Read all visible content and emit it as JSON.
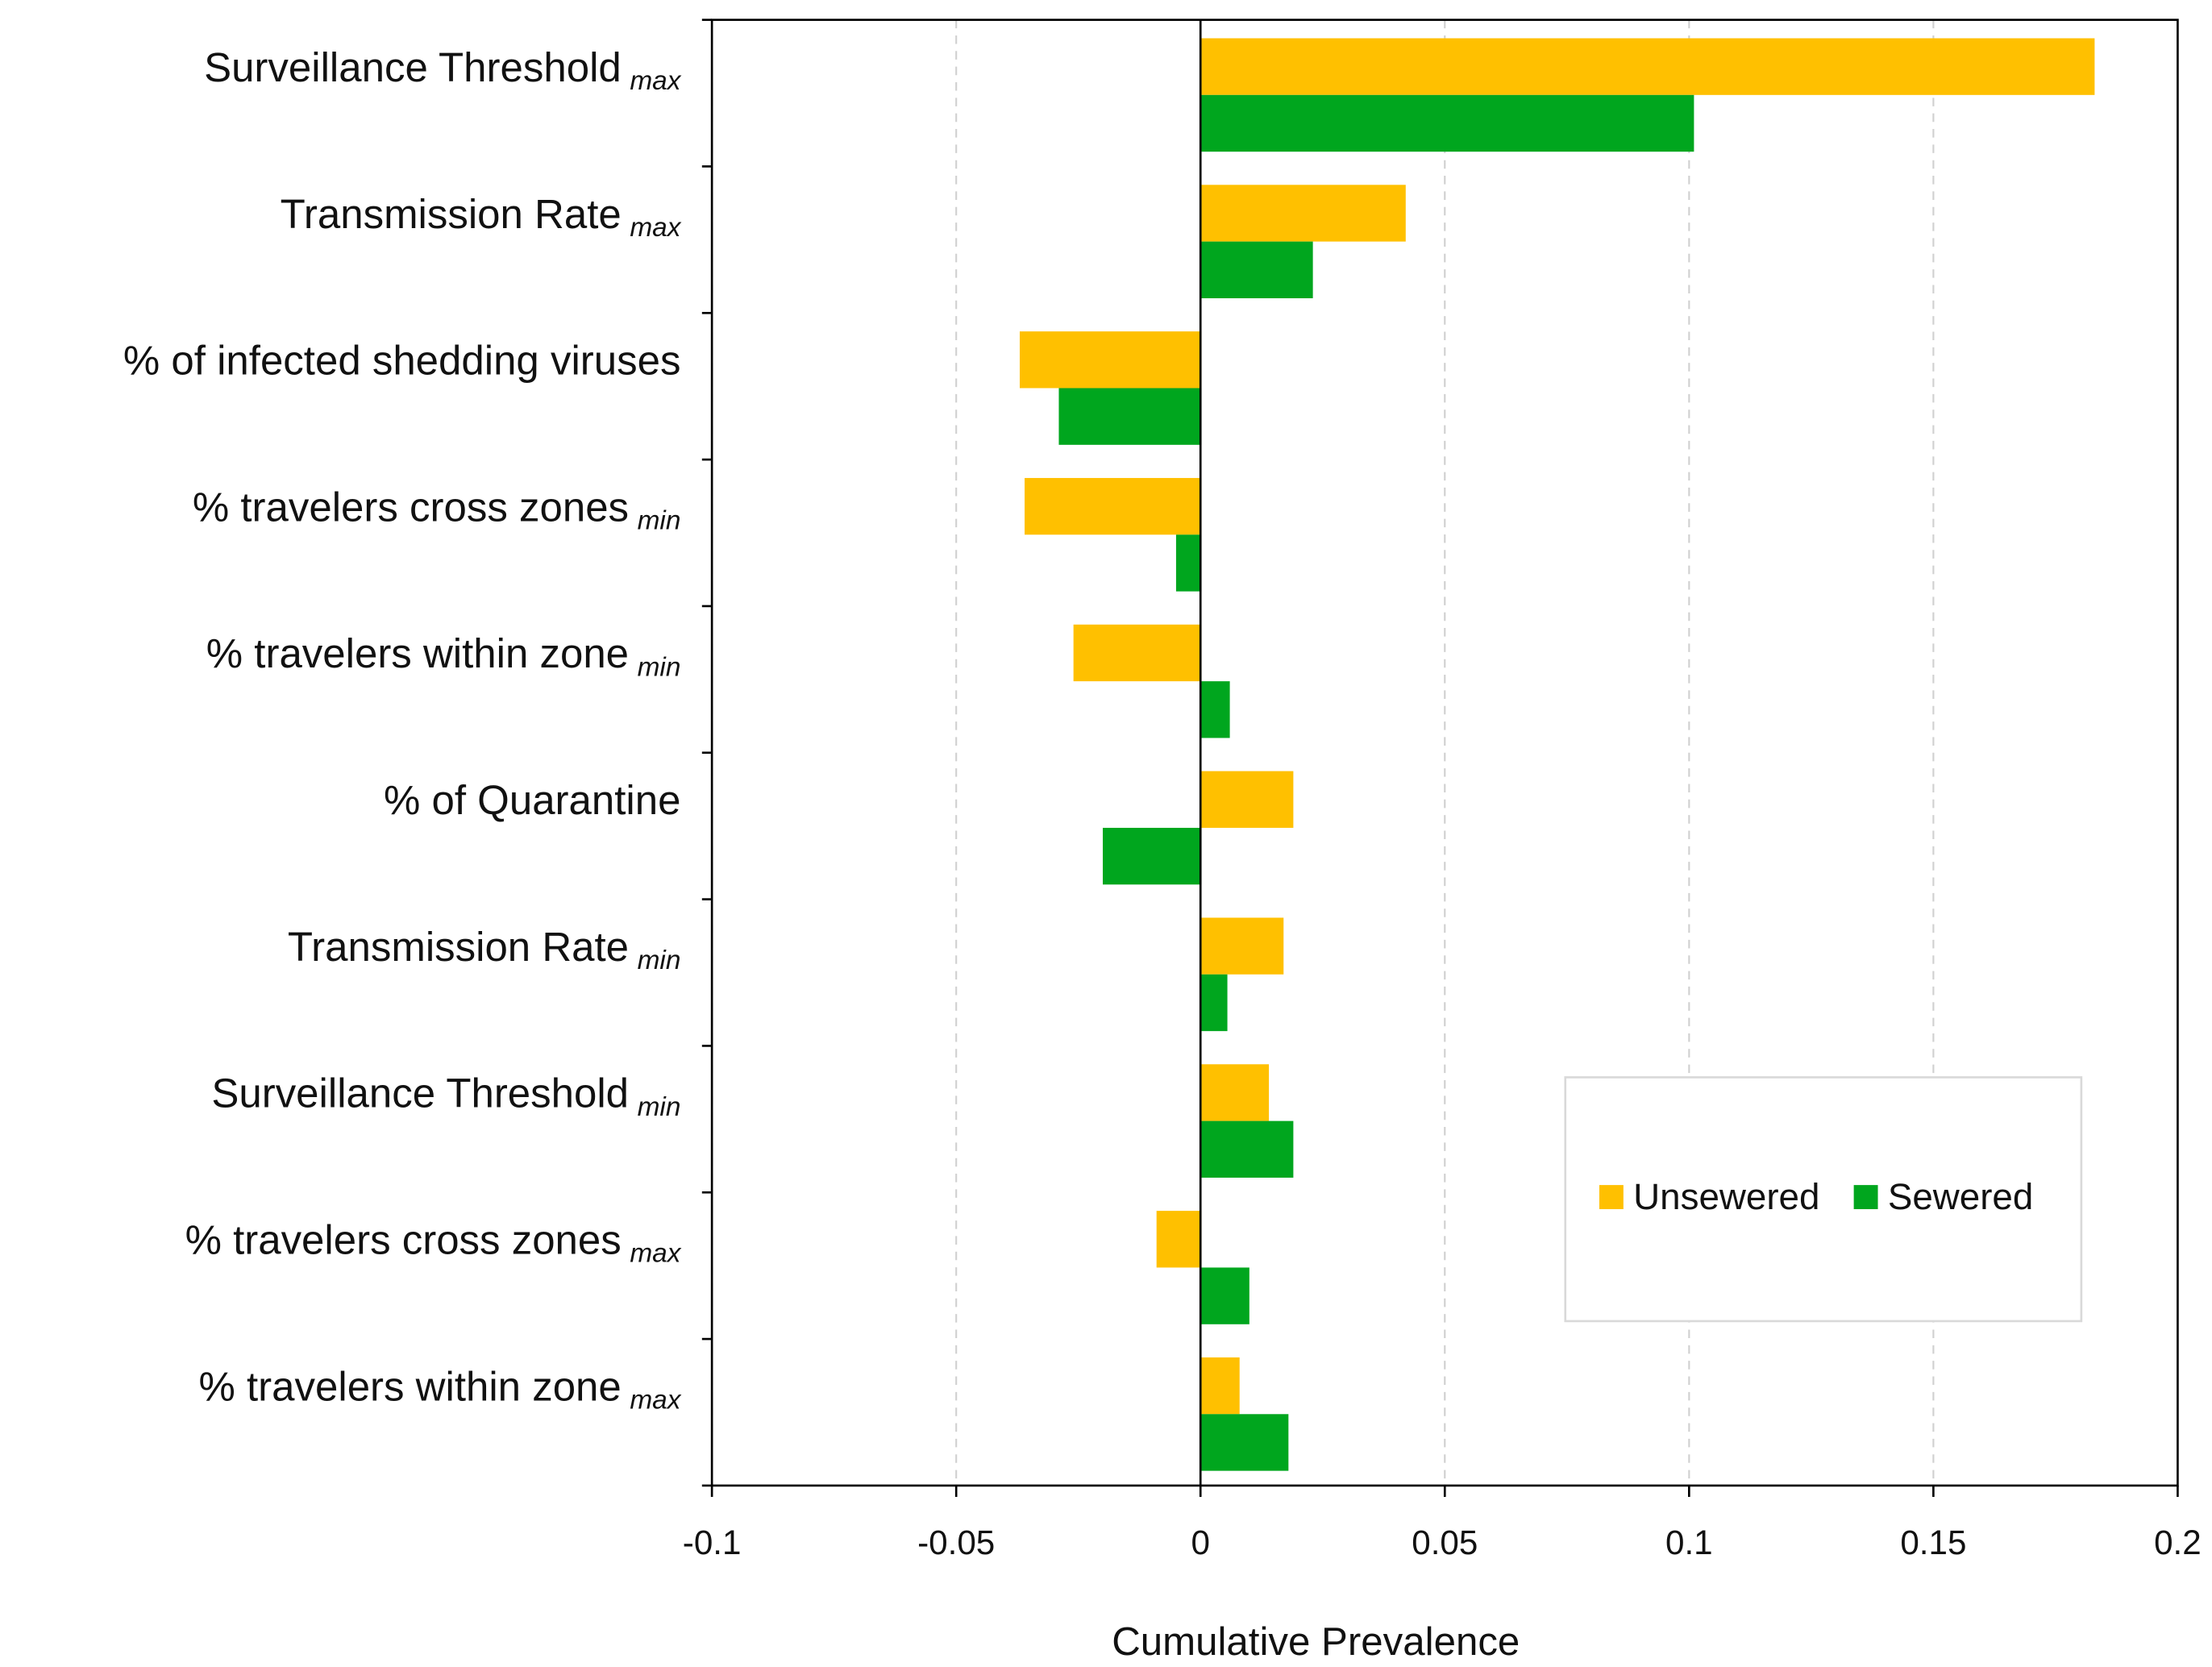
{
  "chart_data": {
    "type": "bar",
    "orientation": "horizontal",
    "xlabel": "Cumulative Prevalence",
    "categories": [
      {
        "label": "Surveillance Threshold",
        "subscript": "max"
      },
      {
        "label": "Transmission Rate",
        "subscript": "max"
      },
      {
        "label": "% of infected shedding viruses"
      },
      {
        "label": "% travelers cross zones",
        "subscript": "min"
      },
      {
        "label": "% travelers within zone",
        "subscript": "min"
      },
      {
        "label": "% of Quarantine"
      },
      {
        "label": "Transmission Rate",
        "subscript": "min"
      },
      {
        "label": "Surveillance Threshold",
        "subscript": "min"
      },
      {
        "label": "% travelers cross zones",
        "subscript": "max"
      },
      {
        "label": "% travelers within zone",
        "subscript": "max"
      }
    ],
    "series": [
      {
        "name": "Unsewered",
        "color": "#ffc000",
        "values": [
          0.183,
          0.042,
          -0.037,
          -0.036,
          -0.026,
          0.019,
          0.017,
          0.014,
          -0.009,
          0.008
        ]
      },
      {
        "name": "Sewered",
        "color": "#00a61e",
        "values": [
          0.101,
          0.023,
          -0.029,
          -0.005,
          0.006,
          -0.02,
          0.0055,
          0.019,
          0.01,
          0.018
        ]
      }
    ],
    "xlim": [
      -0.1,
      0.2
    ],
    "xticks": [
      -0.1,
      -0.05,
      0,
      0.05,
      0.1,
      0.15,
      0.2
    ],
    "grid": true,
    "legend": "lower right"
  }
}
